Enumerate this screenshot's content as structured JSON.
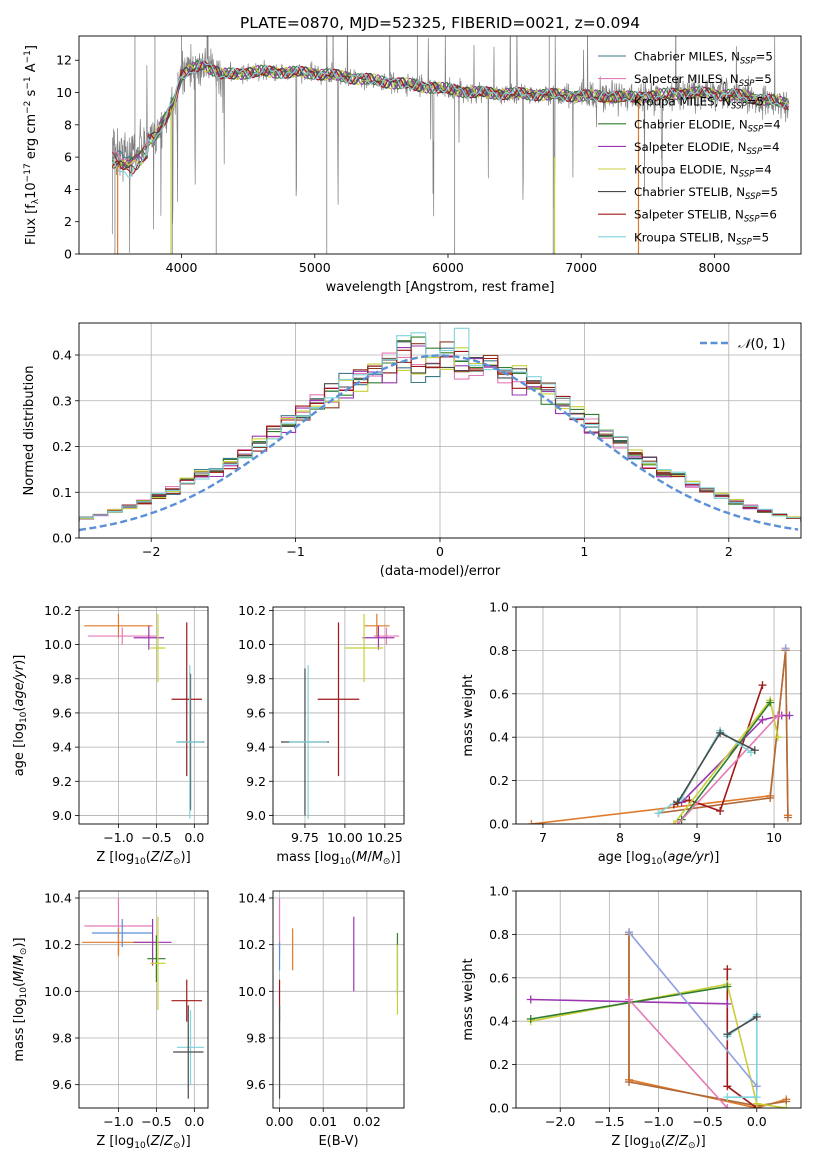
{
  "figure": {
    "title": "PLATE=0870, MJD=52325, FIBERID=0021, z=0.094"
  },
  "legend_colors": [
    "#3d7a8a",
    "#e47ab6",
    "#8a3c1f",
    "#2f7d2f",
    "#9a36b0",
    "#c8cf39",
    "#4a4a4a",
    "#a01818",
    "#7fd4dd"
  ],
  "chart_data": [
    {
      "id": "spectrum",
      "type": "line",
      "xlabel": "wavelength [Angstrom, rest frame]",
      "ylabel": "Flux [fλ10⁻¹⁷ erg cm⁻² s⁻¹ A⁻¹]",
      "xlim": [
        3230,
        8650
      ],
      "ylim": [
        0,
        13.5
      ],
      "xticks": [
        4000,
        5000,
        6000,
        7000,
        8000
      ],
      "yticks": [
        0,
        2,
        4,
        6,
        8,
        10,
        12
      ],
      "grid": false,
      "legend_position": "upper-right",
      "data_color": "#808080",
      "series": [
        {
          "name": "Chabrier MILES, N_SSP=5",
          "label": "Chabrier MILES, N",
          "sub": "SSP",
          "count": "=5",
          "color": "#3d7a8a"
        },
        {
          "name": "Salpeter MILES, N_SSP=5",
          "label": "Salpeter MILES, N",
          "sub": "SSP",
          "count": "=5",
          "color": "#e47ab6"
        },
        {
          "name": "Kroupa MILES, N_SSP=5",
          "label": "Kroupa MILES, N",
          "sub": "SSP",
          "count": "=5",
          "color": "#8a3c1f"
        },
        {
          "name": "Chabrier ELODIE, N_SSP=4",
          "label": "Chabrier ELODIE, N",
          "sub": "SSP",
          "count": "=4",
          "color": "#2f7d2f"
        },
        {
          "name": "Salpeter ELODIE, N_SSP=4",
          "label": "Salpeter ELODIE, N",
          "sub": "SSP",
          "count": "=4",
          "color": "#9a36b0"
        },
        {
          "name": "Kroupa ELODIE, N_SSP=4",
          "label": "Kroupa ELODIE, N",
          "sub": "SSP",
          "count": "=4",
          "color": "#c8cf39"
        },
        {
          "name": "Chabrier STELIB, N_SSP=5",
          "label": "Chabrier STELIB, N",
          "sub": "SSP",
          "count": "=5",
          "color": "#4a4a4a"
        },
        {
          "name": "Salpeter STELIB, N_SSP=6",
          "label": "Salpeter STELIB, N",
          "sub": "SSP",
          "count": "=6",
          "color": "#a01818"
        },
        {
          "name": "Kroupa STELIB, N_SSP=5",
          "label": "Kroupa STELIB, N",
          "sub": "SSP",
          "count": "=5",
          "color": "#7fd4dd"
        }
      ],
      "continuum": [
        [
          3480,
          6.4
        ],
        [
          3600,
          6.2
        ],
        [
          3800,
          7.2
        ],
        [
          3950,
          9.6
        ],
        [
          4000,
          11.0
        ],
        [
          4150,
          11.8
        ],
        [
          4300,
          11.1
        ],
        [
          4600,
          11.3
        ],
        [
          5000,
          11.2
        ],
        [
          5400,
          10.8
        ],
        [
          5800,
          10.4
        ],
        [
          6200,
          10.0
        ],
        [
          6600,
          9.9
        ],
        [
          7000,
          9.8
        ],
        [
          7400,
          9.7
        ],
        [
          7800,
          10.0
        ],
        [
          8200,
          9.8
        ],
        [
          8560,
          9.3
        ]
      ]
    },
    {
      "id": "residuals",
      "type": "histogram",
      "xlabel": "(data-model)/error",
      "ylabel": "Normed distribution",
      "xlim": [
        -2.5,
        2.5
      ],
      "ylim": [
        0,
        0.47
      ],
      "xticks": [
        -2,
        -1,
        0,
        1,
        2
      ],
      "yticks": [
        0.0,
        0.1,
        0.2,
        0.3,
        0.4
      ],
      "grid": true,
      "legend_position": "upper-right",
      "reference_label": "𝒩(0, 1)",
      "reference_color": "#5b8fd6",
      "bin_width": 0.1
    },
    {
      "id": "age_vs_Z",
      "type": "errorbar",
      "xlabel": "Z [log₁₀(Z/Z⊙)]",
      "ylabel": "age  [log₁₀(age/yr)]",
      "xlim": [
        -1.52,
        0.18
      ],
      "ylim": [
        8.95,
        10.22
      ],
      "xticks": [
        -1,
        -0.5,
        0
      ],
      "yticks": [
        9.0,
        9.2,
        9.4,
        9.6,
        9.8,
        10.0,
        10.2
      ],
      "grid": true,
      "points": [
        {
          "x": -1.0,
          "xerr": 0.45,
          "y": 10.11,
          "yerr": 0.07,
          "color": "#e07a2a"
        },
        {
          "x": -0.95,
          "xerr": 0.45,
          "y": 10.05,
          "yerr": 0.05,
          "color": "#e47ab6"
        },
        {
          "x": -0.6,
          "xerr": 0.2,
          "y": 10.04,
          "yerr": 0.07,
          "color": "#9a36b0"
        },
        {
          "x": -0.48,
          "xerr": 0.1,
          "y": 9.98,
          "yerr": 0.2,
          "color": "#c8cf39"
        },
        {
          "x": -0.1,
          "xerr": 0.2,
          "y": 9.68,
          "yerr": 0.45,
          "color": "#a01818"
        },
        {
          "x": -0.05,
          "xerr": 0.18,
          "y": 9.43,
          "yerr": 0.4,
          "color": "#4a4a4a"
        },
        {
          "x": -0.06,
          "xerr": 0.18,
          "y": 9.43,
          "yerr": 0.45,
          "color": "#7fd4dd"
        }
      ]
    },
    {
      "id": "age_vs_mass",
      "type": "errorbar",
      "xlabel": "mass [log₁₀(M/M⊙)]",
      "ylabel": "",
      "xlim": [
        9.55,
        10.37
      ],
      "ylim": [
        8.95,
        10.22
      ],
      "xticks": [
        9.75,
        10.0,
        10.25
      ],
      "xticklabels": [
        "9.75",
        "10.00",
        "10.25"
      ],
      "yticks": [
        9.0,
        9.2,
        9.4,
        9.6,
        9.8,
        10.0,
        10.2
      ],
      "grid": true,
      "points": [
        {
          "x": 10.2,
          "xerr": 0.08,
          "y": 10.11,
          "yerr": 0.07,
          "color": "#e07a2a"
        },
        {
          "x": 10.26,
          "xerr": 0.08,
          "y": 10.05,
          "yerr": 0.05,
          "color": "#e47ab6"
        },
        {
          "x": 10.21,
          "xerr": 0.1,
          "y": 10.04,
          "yerr": 0.07,
          "color": "#9a36b0"
        },
        {
          "x": 10.12,
          "xerr": 0.12,
          "y": 9.98,
          "yerr": 0.2,
          "color": "#c8cf39"
        },
        {
          "x": 9.96,
          "xerr": 0.13,
          "y": 9.68,
          "yerr": 0.45,
          "color": "#a01818"
        },
        {
          "x": 9.75,
          "xerr": 0.15,
          "y": 9.43,
          "yerr": 0.43,
          "color": "#4a4a4a"
        },
        {
          "x": 9.77,
          "xerr": 0.12,
          "y": 9.43,
          "yerr": 0.45,
          "color": "#7fd4dd"
        }
      ]
    },
    {
      "id": "weight_vs_age",
      "type": "line",
      "xlabel": "age  [log₁₀(age/yr)]",
      "ylabel": "mass weight",
      "xlim": [
        6.65,
        10.35
      ],
      "ylim": [
        0,
        1.0
      ],
      "xticks": [
        7,
        8,
        9,
        10
      ],
      "yticks": [
        0.0,
        0.2,
        0.4,
        0.6,
        0.8,
        1.0
      ],
      "grid": true,
      "series": [
        {
          "color": "#e07a2a",
          "points": [
            [
              6.85,
              0.0
            ],
            [
              9.95,
              0.13
            ],
            [
              10.15,
              0.8
            ],
            [
              10.18,
              0.04
            ]
          ]
        },
        {
          "color": "#b06b3a",
          "points": [
            [
              8.5,
              0.05
            ],
            [
              9.95,
              0.12
            ],
            [
              10.15,
              0.8
            ],
            [
              10.18,
              0.03
            ]
          ]
        },
        {
          "color": "#a01818",
          "points": [
            [
              8.7,
              0.09
            ],
            [
              8.9,
              0.11
            ],
            [
              9.3,
              0.06
            ],
            [
              9.85,
              0.64
            ]
          ]
        },
        {
          "color": "#9a36b0",
          "points": [
            [
              8.8,
              0.1
            ],
            [
              9.85,
              0.48
            ],
            [
              10.1,
              0.5
            ],
            [
              10.2,
              0.5
            ]
          ]
        },
        {
          "color": "#c8cf39",
          "points": [
            [
              8.7,
              0.0
            ],
            [
              9.95,
              0.57
            ],
            [
              10.05,
              0.4
            ]
          ]
        },
        {
          "color": "#2f7d2f",
          "points": [
            [
              8.8,
              0.02
            ],
            [
              9.95,
              0.56
            ]
          ]
        },
        {
          "color": "#e47ab6",
          "points": [
            [
              8.75,
              0.0
            ],
            [
              10.05,
              0.5
            ]
          ]
        },
        {
          "color": "#7fd4dd",
          "points": [
            [
              8.5,
              0.05
            ],
            [
              8.8,
              0.12
            ],
            [
              9.3,
              0.43
            ],
            [
              9.7,
              0.33
            ]
          ]
        },
        {
          "color": "#4a4a4a",
          "points": [
            [
              8.75,
              0.1
            ],
            [
              9.3,
              0.42
            ],
            [
              9.75,
              0.34
            ]
          ]
        },
        {
          "color": "#8fa0e0",
          "points": [
            [
              10.15,
              0.81
            ]
          ]
        }
      ]
    },
    {
      "id": "mass_vs_Z",
      "type": "errorbar",
      "xlabel": "Z [log₁₀(Z/Z⊙)]",
      "ylabel": "mass [log₁₀(M/M⊙)]",
      "xlim": [
        -1.52,
        0.18
      ],
      "ylim": [
        9.5,
        10.43
      ],
      "xticks": [
        -1,
        -0.5,
        0
      ],
      "yticks": [
        9.6,
        9.8,
        10.0,
        10.2,
        10.4
      ],
      "grid": true,
      "points": [
        {
          "x": -1.0,
          "xerr": 0.45,
          "y": 10.28,
          "yerr": 0.12,
          "color": "#e47ab6"
        },
        {
          "x": -0.95,
          "xerr": 0.4,
          "y": 10.25,
          "yerr": 0.06,
          "color": "#5b8fd6"
        },
        {
          "x": -1.0,
          "xerr": 0.48,
          "y": 10.21,
          "yerr": 0.06,
          "color": "#e07a2a"
        },
        {
          "x": -0.55,
          "xerr": 0.25,
          "y": 10.21,
          "yerr": 0.1,
          "color": "#9a36b0"
        },
        {
          "x": -0.5,
          "xerr": 0.12,
          "y": 10.14,
          "yerr": 0.1,
          "color": "#2f7d2f"
        },
        {
          "x": -0.48,
          "xerr": 0.1,
          "y": 10.12,
          "yerr": 0.2,
          "color": "#c8cf39"
        },
        {
          "x": -0.1,
          "xerr": 0.2,
          "y": 9.96,
          "yerr": 0.09,
          "color": "#a01818"
        },
        {
          "x": -0.05,
          "xerr": 0.18,
          "y": 9.76,
          "yerr": 0.16,
          "color": "#7fd4dd"
        },
        {
          "x": -0.08,
          "xerr": 0.2,
          "y": 9.74,
          "yerr": 0.2,
          "color": "#4a4a4a"
        }
      ]
    },
    {
      "id": "mass_vs_ebv",
      "type": "errorbar",
      "xlabel": "E(B-V)",
      "ylabel": "",
      "xlim": [
        -0.0015,
        0.0285
      ],
      "ylim": [
        9.5,
        10.43
      ],
      "xticks": [
        0.0,
        0.01,
        0.02
      ],
      "xticklabels": [
        "0.00",
        "0.01",
        "0.02"
      ],
      "yticks": [
        9.6,
        9.8,
        10.0,
        10.2,
        10.4
      ],
      "grid": true,
      "points": [
        {
          "x": 0.0,
          "y": 10.28,
          "yerr": 0.12,
          "color": "#e47ab6"
        },
        {
          "x": 0.0,
          "y": 10.15,
          "yerr": 0.06,
          "color": "#5b8fd6"
        },
        {
          "x": 0.003,
          "y": 10.18,
          "yerr": 0.09,
          "color": "#e07a2a"
        },
        {
          "x": 0.017,
          "y": 10.16,
          "yerr": 0.16,
          "color": "#9a36b0"
        },
        {
          "x": 0.027,
          "y": 10.12,
          "yerr": 0.13,
          "color": "#2f7d2f"
        },
        {
          "x": 0.027,
          "y": 10.05,
          "yerr": 0.15,
          "color": "#c8cf39"
        },
        {
          "x": 0.0,
          "y": 9.96,
          "yerr": 0.09,
          "color": "#a01818"
        },
        {
          "x": 0.0,
          "y": 9.76,
          "yerr": 0.18,
          "color": "#7fd4dd"
        },
        {
          "x": 0.0,
          "y": 9.74,
          "yerr": 0.2,
          "color": "#4a4a4a"
        }
      ]
    },
    {
      "id": "weight_vs_Z",
      "type": "line",
      "xlabel": "Z [log₁₀(Z/Z⊙)]",
      "ylabel": "mass weight",
      "xlim": [
        -2.45,
        0.45
      ],
      "ylim": [
        0,
        1.0
      ],
      "xticks": [
        -2.0,
        -1.5,
        -1.0,
        -0.5,
        0.0
      ],
      "xticklabels": [
        "−2.0",
        "−1.5",
        "−1.0",
        "−0.5",
        "0.0"
      ],
      "yticks": [
        0.0,
        0.2,
        0.4,
        0.6,
        0.8,
        1.0
      ],
      "grid": true,
      "series": [
        {
          "color": "#e07a2a",
          "points": [
            [
              -1.3,
              0.81
            ],
            [
              -1.3,
              0.13
            ],
            [
              0.0,
              0.0
            ],
            [
              0.3,
              0.04
            ]
          ]
        },
        {
          "color": "#b06b3a",
          "points": [
            [
              -1.3,
              0.8
            ],
            [
              -1.3,
              0.12
            ],
            [
              0.0,
              0.01
            ],
            [
              0.3,
              0.03
            ]
          ]
        },
        {
          "color": "#a01818",
          "points": [
            [
              -0.3,
              0.64
            ],
            [
              -0.3,
              0.1
            ],
            [
              0.0,
              0.0
            ]
          ]
        },
        {
          "color": "#9a36b0",
          "points": [
            [
              -2.3,
              0.5
            ],
            [
              -0.3,
              0.48
            ]
          ]
        },
        {
          "color": "#c8cf39",
          "points": [
            [
              -2.3,
              0.4
            ],
            [
              -0.3,
              0.57
            ],
            [
              0.0,
              0.02
            ],
            [
              0.3,
              0.0
            ]
          ]
        },
        {
          "color": "#2f7d2f",
          "points": [
            [
              -2.3,
              0.41
            ],
            [
              -0.3,
              0.56
            ]
          ]
        },
        {
          "color": "#e47ab6",
          "points": [
            [
              -1.3,
              0.5
            ],
            [
              -0.3,
              0.0
            ]
          ]
        },
        {
          "color": "#7fd4dd",
          "points": [
            [
              -0.3,
              0.33
            ],
            [
              0.0,
              0.43
            ],
            [
              0.0,
              0.05
            ],
            [
              -0.3,
              0.05
            ]
          ]
        },
        {
          "color": "#4a4a4a",
          "points": [
            [
              -0.3,
              0.34
            ],
            [
              0.0,
              0.42
            ]
          ]
        },
        {
          "color": "#8fa0e0",
          "points": [
            [
              -1.3,
              0.81
            ],
            [
              0.0,
              0.1
            ]
          ]
        }
      ]
    }
  ]
}
